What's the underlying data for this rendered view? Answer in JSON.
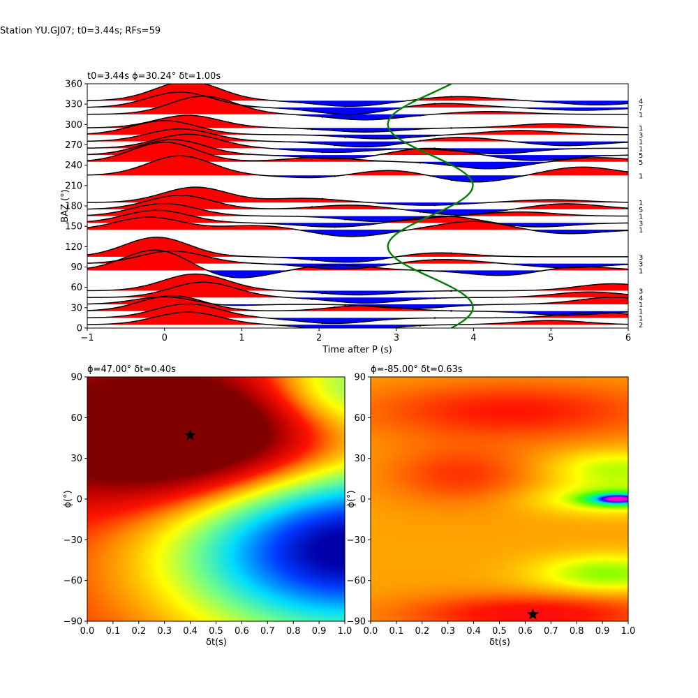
{
  "figure": {
    "suptitle": "Station YU.GJ07; t0=3.44s; RFs=59"
  },
  "chart_data": [
    {
      "type": "line",
      "name": "receiver-function-traces",
      "title": "t0=3.44s ϕ=30.24° δt=1.00s",
      "xlabel": "Time after P (s)",
      "ylabel": "BAZ (°)",
      "xlim": [
        -1,
        6
      ],
      "ylim": [
        0,
        360
      ],
      "xticks": [
        -1,
        0,
        1,
        2,
        3,
        4,
        5,
        6
      ],
      "yticks": [
        0,
        30,
        60,
        90,
        120,
        150,
        180,
        210,
        240,
        270,
        300,
        330,
        360
      ],
      "fill_positive_color": "#ff0000",
      "fill_negative_color": "#0000ff",
      "trace_color": "#000000",
      "model_curve_color": "#008000",
      "model_curve": {
        "center_time": 3.44,
        "amplitude": 0.55,
        "period_deg": 180,
        "phase_deg": 30.24
      },
      "bins": [
        {
          "baz": 5,
          "count": "2",
          "peaks": [
            [
              0.3,
              18
            ],
            [
              2.4,
              -10
            ],
            [
              5.0,
              6
            ]
          ]
        },
        {
          "baz": 15,
          "count": "1",
          "peaks": [
            [
              0.3,
              20
            ],
            [
              2.2,
              -8
            ],
            [
              5.6,
              8
            ]
          ]
        },
        {
          "baz": 25,
          "count": "1",
          "peaks": [
            [
              0.1,
              22
            ],
            [
              2.6,
              8
            ],
            [
              5.2,
              -6
            ]
          ]
        },
        {
          "baz": 35,
          "count": "1",
          "peaks": [
            [
              0.1,
              14
            ],
            [
              0.5,
              -6
            ],
            [
              3.2,
              -6
            ],
            [
              5.8,
              10
            ]
          ]
        },
        {
          "baz": 45,
          "count": "4",
          "peaks": [
            [
              0.5,
              22
            ],
            [
              2.6,
              -8
            ],
            [
              5.5,
              8
            ]
          ]
        },
        {
          "baz": 55,
          "count": "3",
          "peaks": [
            [
              0.4,
              24
            ],
            [
              2.5,
              -6
            ],
            [
              5.8,
              10
            ]
          ]
        },
        {
          "baz": 85,
          "count": "1",
          "peaks": [
            [
              -0.1,
              30
            ],
            [
              0.9,
              -12
            ],
            [
              2.2,
              8
            ],
            [
              4.4,
              -8
            ],
            [
              5.3,
              6
            ]
          ]
        },
        {
          "baz": 95,
          "count": "3",
          "peaks": [
            [
              0.1,
              18
            ],
            [
              2.3,
              -8
            ],
            [
              3.6,
              6
            ],
            [
              5.2,
              -6
            ]
          ]
        },
        {
          "baz": 105,
          "count": "3",
          "peaks": [
            [
              -0.1,
              28
            ],
            [
              2.4,
              -8
            ],
            [
              3.5,
              6
            ]
          ]
        },
        {
          "baz": 145,
          "count": "1",
          "peaks": [
            [
              -0.2,
              18
            ],
            [
              1.2,
              6
            ],
            [
              2.4,
              -10
            ],
            [
              4.0,
              12
            ],
            [
              5.2,
              -6
            ]
          ]
        },
        {
          "baz": 155,
          "count": "3",
          "peaks": [
            [
              -0.1,
              18
            ],
            [
              2.2,
              -6
            ],
            [
              3.6,
              10
            ],
            [
              4.8,
              -6
            ]
          ]
        },
        {
          "baz": 165,
          "count": "1",
          "peaks": [
            [
              0.0,
              18
            ],
            [
              2.8,
              -8
            ],
            [
              4.6,
              6
            ]
          ]
        },
        {
          "baz": 175,
          "count": "5",
          "peaks": [
            [
              0.2,
              20
            ],
            [
              2.4,
              6
            ],
            [
              3.8,
              -8
            ],
            [
              5.2,
              8
            ]
          ]
        },
        {
          "baz": 185,
          "count": "1",
          "peaks": [
            [
              0.4,
              22
            ],
            [
              1.8,
              6
            ],
            [
              3.4,
              -4
            ],
            [
              5.0,
              4
            ]
          ]
        },
        {
          "baz": 225,
          "count": "1",
          "peaks": [
            [
              0.2,
              28
            ],
            [
              2.0,
              -4
            ],
            [
              2.9,
              8
            ],
            [
              4.0,
              -10
            ],
            [
              5.4,
              12
            ]
          ]
        },
        {
          "baz": 245,
          "count": "5",
          "peaks": [
            [
              0.0,
              28
            ],
            [
              2.0,
              6
            ],
            [
              4.2,
              -10
            ],
            [
              5.6,
              6
            ]
          ]
        },
        {
          "baz": 255,
          "count": "5",
          "peaks": [
            [
              0.1,
              22
            ],
            [
              2.3,
              -6
            ],
            [
              3.4,
              10
            ],
            [
              4.8,
              -8
            ]
          ]
        },
        {
          "baz": 265,
          "count": "1",
          "peaks": [
            [
              0.3,
              20
            ],
            [
              2.2,
              -6
            ],
            [
              4.3,
              -8
            ]
          ]
        },
        {
          "baz": 275,
          "count": "1",
          "peaks": [
            [
              0.2,
              18
            ],
            [
              2.6,
              -8
            ],
            [
              3.8,
              6
            ],
            [
              5.2,
              -6
            ]
          ]
        },
        {
          "baz": 285,
          "count": "3",
          "peaks": [
            [
              0.0,
              20
            ],
            [
              2.8,
              -6
            ],
            [
              4.6,
              6
            ]
          ]
        },
        {
          "baz": 295,
          "count": "1",
          "peaks": [
            [
              0.3,
              18
            ],
            [
              2.6,
              -6
            ],
            [
              5.0,
              6
            ]
          ]
        },
        {
          "baz": 315,
          "count": "1",
          "peaks": [
            [
              0.5,
              26
            ],
            [
              2.6,
              -8
            ],
            [
              4.2,
              4
            ]
          ]
        },
        {
          "baz": 325,
          "count": "7",
          "peaks": [
            [
              0.2,
              22
            ],
            [
              2.4,
              -10
            ],
            [
              3.6,
              6
            ],
            [
              5.4,
              -4
            ]
          ]
        },
        {
          "baz": 335,
          "count": "4",
          "peaks": [
            [
              0.3,
              28
            ],
            [
              2.4,
              -8
            ],
            [
              3.8,
              6
            ],
            [
              5.6,
              -6
            ]
          ]
        }
      ]
    },
    {
      "type": "heatmap",
      "name": "grid-search-left",
      "title": "ϕ=47.00° δt=0.40s",
      "xlabel": "δt(s)",
      "ylabel": "ϕ(°)",
      "xlim": [
        0.0,
        1.0
      ],
      "ylim": [
        -90,
        90
      ],
      "xticks": [
        0.0,
        0.1,
        0.2,
        0.3,
        0.4,
        0.5,
        0.6,
        0.7,
        0.8,
        0.9,
        1.0
      ],
      "yticks": [
        -90,
        -60,
        -30,
        0,
        30,
        60,
        90
      ],
      "colormap": "jet-upper",
      "best": {
        "dt": 0.4,
        "phi": 47.0
      },
      "field": {
        "baseline": 0.78,
        "bias": 0.04,
        "terms": [
          {
            "dt": 0.4,
            "phi": 47,
            "amp": -0.55,
            "sdt": 0.45,
            "sphi": 35
          },
          {
            "dt": 1.0,
            "phi": -35,
            "amp": 0.78,
            "sdt": 0.45,
            "sphi": 45
          },
          {
            "dt": 1.0,
            "phi": 80,
            "amp": 0.35,
            "sdt": 0.25,
            "sphi": 25
          }
        ]
      }
    },
    {
      "type": "heatmap",
      "name": "grid-search-right",
      "title": "ϕ=-85.00° δt=0.63s",
      "xlabel": "δt(s)",
      "ylabel": "ϕ(°)",
      "xlim": [
        0.0,
        1.0
      ],
      "ylim": [
        -90,
        90
      ],
      "xticks": [
        0.0,
        0.1,
        0.2,
        0.3,
        0.4,
        0.5,
        0.6,
        0.7,
        0.8,
        0.9,
        1.0
      ],
      "yticks": [
        -90,
        -60,
        -30,
        0,
        30,
        60,
        90
      ],
      "colormap": "hsv-reversed",
      "best": {
        "dt": 0.63,
        "phi": -85.0
      },
      "field": {
        "baseline": 0.72,
        "bias": 0.0,
        "terms": [
          {
            "dt": 0.63,
            "phi": -85,
            "amp": -0.22,
            "sdt": 0.35,
            "sphi": 10
          },
          {
            "dt": 0.55,
            "phi": 65,
            "amp": -0.18,
            "sdt": 0.4,
            "sphi": 15
          },
          {
            "dt": 0.35,
            "phi": 18,
            "amp": -0.14,
            "sdt": 0.2,
            "sphi": 15
          },
          {
            "dt": 0.96,
            "phi": 0,
            "amp": 0.55,
            "sdt": 0.08,
            "sphi": 3
          },
          {
            "dt": 0.95,
            "phi": 0,
            "amp": 0.2,
            "sdt": 0.22,
            "sphi": 8
          },
          {
            "dt": 0.95,
            "phi": 22,
            "amp": 0.18,
            "sdt": 0.18,
            "sphi": 10
          },
          {
            "dt": 0.92,
            "phi": -55,
            "amp": 0.22,
            "sdt": 0.2,
            "sphi": 10
          }
        ]
      }
    }
  ]
}
